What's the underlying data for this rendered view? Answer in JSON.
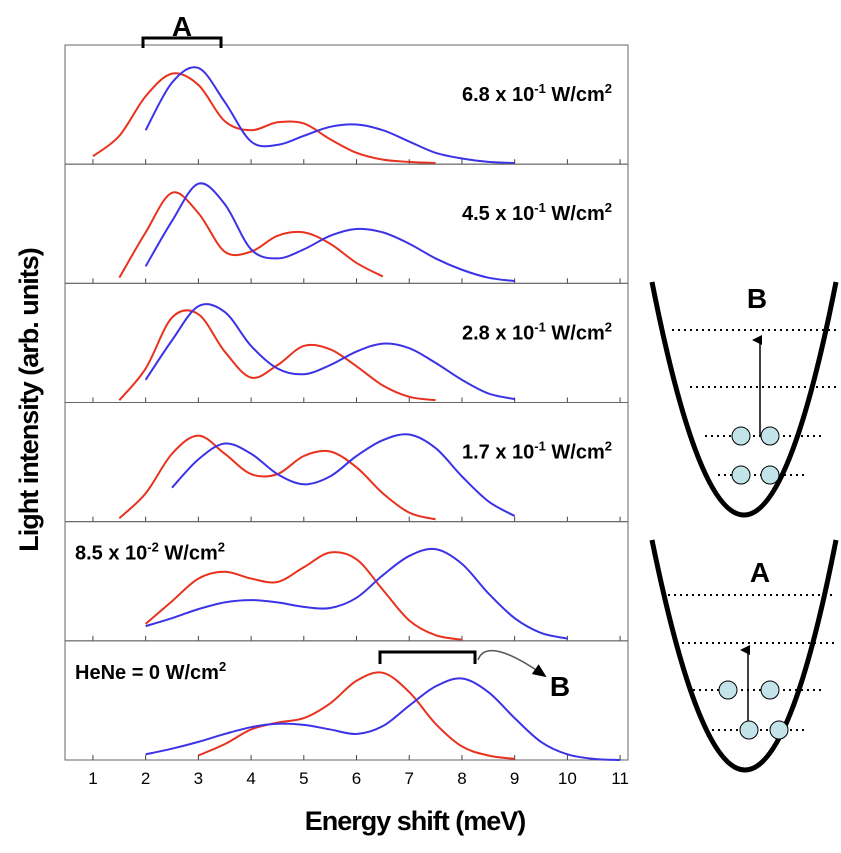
{
  "chart_data": [
    {
      "type": "line",
      "label_parts": [
        {
          "text": "6.8 x 10"
        },
        {
          "text": "-1",
          "sup": true
        },
        {
          "text": " W/cm"
        },
        {
          "text": "2",
          "sup": true
        }
      ],
      "label_side": "right",
      "bracket_label": "A",
      "ylabel": "Light intensity (arb. units)",
      "x": [
        1,
        1.5,
        2,
        2.5,
        3,
        3.5,
        4,
        4.5,
        5,
        5.5,
        6,
        6.5,
        7,
        7.5,
        8,
        8.5,
        9,
        9.5,
        10,
        10.5,
        11
      ],
      "ylim": [
        0,
        1
      ],
      "series": [
        {
          "color": "#e8321e",
          "values": [
            0.07,
            0.25,
            0.6,
            0.8,
            0.7,
            0.38,
            0.3,
            0.37,
            0.36,
            0.22,
            0.1,
            0.04,
            0.02,
            0.01,
            null,
            null,
            null,
            null,
            null,
            null,
            null
          ]
        },
        {
          "color": "#3c32e6",
          "values": [
            null,
            null,
            0.3,
            0.72,
            0.85,
            0.55,
            0.2,
            0.17,
            0.25,
            0.33,
            0.35,
            0.3,
            0.2,
            0.1,
            0.05,
            0.02,
            0.01,
            null,
            null,
            null,
            null
          ]
        }
      ]
    },
    {
      "type": "line",
      "label_parts": [
        {
          "text": "4.5 x 10"
        },
        {
          "text": "-1",
          "sup": true
        },
        {
          "text": " W/cm"
        },
        {
          "text": "2",
          "sup": true
        }
      ],
      "label_side": "right",
      "x": [
        1,
        1.5,
        2,
        2.5,
        3,
        3.5,
        4,
        4.5,
        5,
        5.5,
        6,
        6.5,
        7,
        7.5,
        8,
        8.5,
        9,
        9.5,
        10,
        10.5,
        11
      ],
      "ylim": [
        0,
        1
      ],
      "series": [
        {
          "color": "#e8321e",
          "values": [
            null,
            0.05,
            0.45,
            0.8,
            0.62,
            0.28,
            0.28,
            0.42,
            0.45,
            0.35,
            0.18,
            0.06,
            null,
            null,
            null,
            null,
            null,
            null,
            null,
            null,
            null
          ]
        },
        {
          "color": "#3c32e6",
          "values": [
            null,
            null,
            0.15,
            0.55,
            0.88,
            0.7,
            0.3,
            0.22,
            0.3,
            0.42,
            0.48,
            0.45,
            0.35,
            0.22,
            0.12,
            0.05,
            0.02,
            null,
            null,
            null,
            null
          ]
        }
      ]
    },
    {
      "type": "line",
      "label_parts": [
        {
          "text": "2.8 x 10"
        },
        {
          "text": "-1",
          "sup": true
        },
        {
          "text": " W/cm"
        },
        {
          "text": "2",
          "sup": true
        }
      ],
      "label_side": "right",
      "x": [
        1,
        1.5,
        2,
        2.5,
        3,
        3.5,
        4,
        4.5,
        5,
        5.5,
        6,
        6.5,
        7,
        7.5,
        8,
        8.5,
        9,
        9.5,
        10,
        10.5,
        11
      ],
      "ylim": [
        0,
        1
      ],
      "series": [
        {
          "color": "#e8321e",
          "values": [
            null,
            0.02,
            0.3,
            0.75,
            0.78,
            0.45,
            0.22,
            0.33,
            0.5,
            0.47,
            0.32,
            0.15,
            0.05,
            0.02,
            null,
            null,
            null,
            null,
            null,
            null,
            null
          ]
        },
        {
          "color": "#3c32e6",
          "values": [
            null,
            null,
            0.2,
            0.55,
            0.85,
            0.8,
            0.5,
            0.3,
            0.25,
            0.33,
            0.45,
            0.52,
            0.48,
            0.35,
            0.2,
            0.08,
            0.03,
            null,
            null,
            null,
            null
          ]
        }
      ]
    },
    {
      "type": "line",
      "label_parts": [
        {
          "text": "1.7 x 10"
        },
        {
          "text": "-1",
          "sup": true
        },
        {
          "text": " W/cm"
        },
        {
          "text": "2",
          "sup": true
        }
      ],
      "label_side": "right",
      "x": [
        1,
        1.5,
        2,
        2.5,
        3,
        3.5,
        4,
        4.5,
        5,
        5.5,
        6,
        6.5,
        7,
        7.5,
        8,
        8.5,
        9,
        9.5,
        10,
        10.5,
        11
      ],
      "ylim": [
        0,
        1
      ],
      "series": [
        {
          "color": "#e8321e",
          "values": [
            null,
            0.03,
            0.25,
            0.6,
            0.76,
            0.6,
            0.42,
            0.42,
            0.58,
            0.62,
            0.48,
            0.25,
            0.08,
            0.02,
            null,
            null,
            null,
            null,
            null,
            null,
            null
          ]
        },
        {
          "color": "#3c32e6",
          "values": [
            null,
            null,
            null,
            0.3,
            0.55,
            0.69,
            0.6,
            0.42,
            0.33,
            0.4,
            0.58,
            0.72,
            0.77,
            0.65,
            0.4,
            0.18,
            0.05,
            null,
            null,
            null,
            null
          ]
        }
      ]
    },
    {
      "type": "line",
      "label_parts": [
        {
          "text": "8.5 x 10"
        },
        {
          "text": "-2",
          "sup": true
        },
        {
          "text": " W/cm"
        },
        {
          "text": "2",
          "sup": true
        }
      ],
      "label_side": "left",
      "x": [
        1,
        1.5,
        2,
        2.5,
        3,
        3.5,
        4,
        4.5,
        5,
        5.5,
        6,
        6.5,
        7,
        7.5,
        8,
        8.5,
        9,
        9.5,
        10,
        10.5,
        11
      ],
      "ylim": [
        0,
        1
      ],
      "series": [
        {
          "color": "#e8321e",
          "values": [
            null,
            null,
            0.15,
            0.35,
            0.55,
            0.61,
            0.55,
            0.52,
            0.65,
            0.78,
            0.72,
            0.45,
            0.18,
            0.05,
            0.01,
            null,
            null,
            null,
            null,
            null,
            null
          ]
        },
        {
          "color": "#3c32e6",
          "values": [
            null,
            null,
            0.13,
            0.2,
            0.28,
            0.34,
            0.36,
            0.34,
            0.3,
            0.29,
            0.38,
            0.58,
            0.75,
            0.81,
            0.68,
            0.42,
            0.2,
            0.07,
            0.02,
            null,
            null
          ]
        }
      ]
    },
    {
      "type": "line",
      "label_parts": [
        {
          "text": "HeNe = 0 W/cm"
        },
        {
          "text": "2",
          "sup": true
        }
      ],
      "label_side": "left",
      "bracket_label": "B",
      "xlabel": "Energy shift (meV)",
      "x": [
        1,
        1.5,
        2,
        2.5,
        3,
        3.5,
        4,
        4.5,
        5,
        5.5,
        6,
        6.5,
        7,
        7.5,
        8,
        8.5,
        9,
        9.5,
        10,
        10.5,
        11
      ],
      "ylim": [
        0,
        1
      ],
      "xlim": [
        0.47,
        11.15
      ],
      "xticks": [
        1,
        2,
        3,
        4,
        5,
        6,
        7,
        8,
        9,
        10,
        11
      ],
      "series": [
        {
          "color": "#e8321e",
          "values": [
            null,
            null,
            null,
            null,
            0.04,
            0.14,
            0.27,
            0.33,
            0.37,
            0.5,
            0.7,
            0.77,
            0.6,
            0.32,
            0.12,
            0.04,
            0.01,
            null,
            null,
            null,
            null
          ]
        },
        {
          "color": "#3c32e6",
          "values": [
            null,
            null,
            0.05,
            0.1,
            0.16,
            0.23,
            0.29,
            0.32,
            0.31,
            0.27,
            0.23,
            0.3,
            0.48,
            0.65,
            0.72,
            0.6,
            0.37,
            0.16,
            0.05,
            0.01,
            0
          ]
        }
      ]
    }
  ],
  "diagrams": {
    "upper_label": "B",
    "lower_label": "A"
  }
}
